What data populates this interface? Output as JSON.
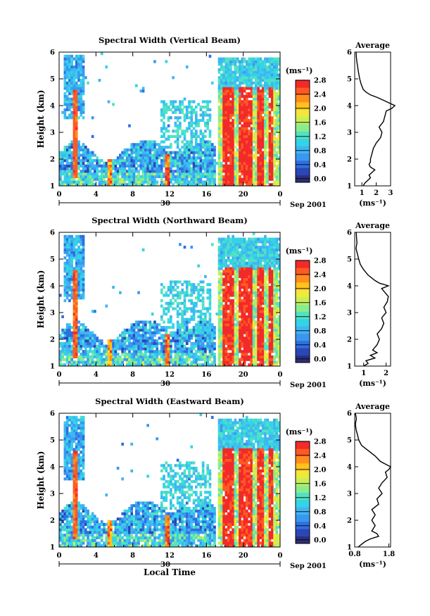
{
  "figure": {
    "xlabel": "Local Time",
    "date_label": "Sep 2001",
    "day_label": "30",
    "colorbar_unit": "(ms⁻¹)",
    "profile_title": "Average",
    "profile_unit": "(ms⁻¹)"
  },
  "colors": {
    "scale": [
      "#2b2f7a",
      "#2a46b8",
      "#2f6fe0",
      "#3a97f0",
      "#3fb6f2",
      "#35d3e6",
      "#52e2c2",
      "#8cec8c",
      "#c6f05a",
      "#f1e83a",
      "#ffc21f",
      "#ff8f1a",
      "#ff5a22",
      "#f22a2a"
    ],
    "trace": "#000000",
    "axis": "#000000"
  },
  "chart_data": [
    {
      "type": "heatmap",
      "title": "Spectral Width (Vertical Beam)",
      "ylabel": "Height (km)",
      "xlabel": "Local Time",
      "x_ticks": [
        "0",
        "4",
        "8",
        "12",
        "16",
        "20",
        "0"
      ],
      "y_ticks": [
        "1",
        "2",
        "3",
        "4",
        "5",
        "6"
      ],
      "xlim": [
        0,
        24
      ],
      "ylim": [
        1,
        6
      ],
      "colorbar": {
        "unit": "(ms⁻¹)",
        "ticks": [
          "0.0",
          "0.4",
          "0.8",
          "1.2",
          "1.6",
          "2.0",
          "2.4",
          "2.8"
        ],
        "range": [
          0.0,
          2.9
        ]
      },
      "seed": 11,
      "profile": {
        "title": "Average",
        "x_ticks": [
          "1",
          "2",
          "3"
        ],
        "x_tick_values": [
          1,
          2,
          3
        ],
        "xlim": [
          0.5,
          3.0
        ],
        "y_ticks": [
          "1",
          "2",
          "3",
          "4",
          "5",
          "6"
        ],
        "ylim": [
          1,
          6
        ],
        "xlabel": "(ms⁻¹)",
        "height_km": [
          1.0,
          1.1,
          1.2,
          1.3,
          1.4,
          1.5,
          1.6,
          1.7,
          1.8,
          1.9,
          2.0,
          2.2,
          2.4,
          2.6,
          2.8,
          3.0,
          3.2,
          3.4,
          3.6,
          3.8,
          3.9,
          4.0,
          4.1,
          4.2,
          4.3,
          4.4,
          4.5,
          4.6,
          4.8,
          5.0,
          5.2,
          5.4,
          5.6,
          5.8,
          6.0
        ],
        "width_ms": [
          1.1,
          1.2,
          1.4,
          1.6,
          1.5,
          1.7,
          1.9,
          1.6,
          1.5,
          1.6,
          1.6,
          1.7,
          1.8,
          2.0,
          2.3,
          2.4,
          2.2,
          2.5,
          2.6,
          2.7,
          3.1,
          3.3,
          2.9,
          2.5,
          2.1,
          1.6,
          1.3,
          1.1,
          0.95,
          0.85,
          0.78,
          0.72,
          0.66,
          0.62,
          0.6
        ]
      }
    },
    {
      "type": "heatmap",
      "title": "Spectral Width (Northward Beam)",
      "ylabel": "Height (km)",
      "xlabel": "Local Time",
      "x_ticks": [
        "0",
        "4",
        "8",
        "12",
        "16",
        "20",
        "0"
      ],
      "y_ticks": [
        "1",
        "2",
        "3",
        "4",
        "5",
        "6"
      ],
      "xlim": [
        0,
        24
      ],
      "ylim": [
        1,
        6
      ],
      "colorbar": {
        "unit": "(ms⁻¹)",
        "ticks": [
          "0.0",
          "0.4",
          "0.8",
          "1.2",
          "1.6",
          "2.0",
          "2.4",
          "2.8"
        ],
        "range": [
          0.0,
          2.9
        ]
      },
      "seed": 23,
      "profile": {
        "title": "Average",
        "x_ticks": [
          "1",
          "2"
        ],
        "x_tick_values": [
          1,
          2
        ],
        "xlim": [
          0.6,
          2.2
        ],
        "y_ticks": [
          "1",
          "2",
          "3",
          "4",
          "5",
          "6"
        ],
        "ylim": [
          1,
          6
        ],
        "xlabel": "(ms⁻¹)",
        "height_km": [
          1.0,
          1.1,
          1.2,
          1.3,
          1.4,
          1.5,
          1.6,
          1.7,
          1.8,
          2.0,
          2.2,
          2.4,
          2.6,
          2.8,
          3.0,
          3.2,
          3.4,
          3.6,
          3.8,
          3.9,
          4.0,
          4.1,
          4.2,
          4.4,
          4.6,
          4.8,
          5.0,
          5.2,
          5.4,
          5.6,
          5.8,
          6.0
        ],
        "width_ms": [
          1.0,
          1.2,
          1.1,
          1.5,
          1.3,
          1.6,
          1.4,
          1.5,
          1.6,
          1.7,
          1.6,
          1.8,
          1.9,
          1.8,
          2.0,
          1.9,
          2.05,
          2.1,
          1.9,
          1.8,
          2.1,
          1.7,
          1.5,
          1.2,
          1.0,
          0.85,
          0.78,
          0.72,
          0.66,
          0.7,
          0.68,
          0.67
        ]
      }
    },
    {
      "type": "heatmap",
      "title": "Spectral Width (Eastward Beam)",
      "ylabel": "Height (km)",
      "xlabel": "Local Time",
      "x_ticks": [
        "0",
        "4",
        "8",
        "12",
        "16",
        "20",
        "0"
      ],
      "y_ticks": [
        "1",
        "2",
        "3",
        "4",
        "5",
        "6"
      ],
      "xlim": [
        0,
        24
      ],
      "ylim": [
        1,
        6
      ],
      "colorbar": {
        "unit": "(ms⁻¹)",
        "ticks": [
          "0.0",
          "0.4",
          "0.8",
          "1.2",
          "1.6",
          "2.0",
          "2.4",
          "2.8"
        ],
        "range": [
          0.0,
          2.9
        ]
      },
      "seed": 37,
      "profile": {
        "title": "Average",
        "x_ticks": [
          "0.8",
          "1.8"
        ],
        "x_tick_values": [
          0.8,
          1.8
        ],
        "xlim": [
          0.8,
          1.85
        ],
        "y_ticks": [
          "1",
          "2",
          "3",
          "4",
          "5",
          "6"
        ],
        "ylim": [
          1,
          6
        ],
        "xlabel": "(ms⁻¹)",
        "height_km": [
          1.0,
          1.1,
          1.2,
          1.3,
          1.4,
          1.5,
          1.6,
          1.7,
          1.8,
          2.0,
          2.2,
          2.4,
          2.6,
          2.8,
          3.0,
          3.2,
          3.4,
          3.6,
          3.8,
          3.9,
          4.0,
          4.1,
          4.2,
          4.4,
          4.6,
          4.8,
          5.0,
          5.2,
          5.4,
          5.6,
          5.8,
          6.0
        ],
        "width_ms": [
          0.9,
          1.0,
          1.1,
          1.25,
          1.5,
          1.45,
          1.3,
          1.35,
          1.4,
          1.3,
          1.4,
          1.3,
          1.5,
          1.45,
          1.6,
          1.5,
          1.6,
          1.75,
          1.7,
          1.8,
          1.85,
          1.7,
          1.55,
          1.4,
          1.2,
          1.0,
          0.92,
          0.88,
          0.84,
          0.82,
          0.85,
          0.82
        ]
      }
    }
  ]
}
